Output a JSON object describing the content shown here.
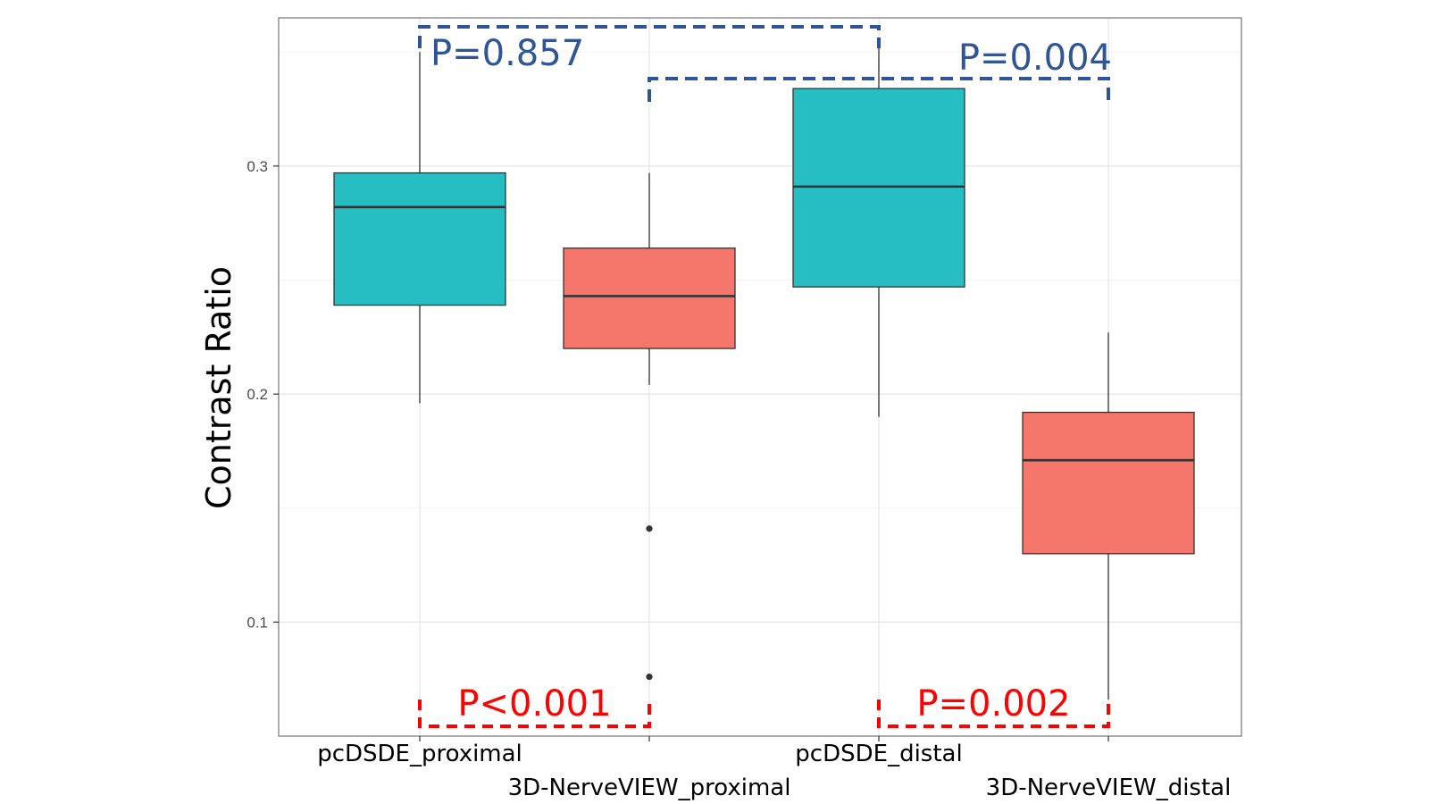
{
  "chart_data": {
    "type": "box",
    "ylabel": "Contrast Ratio",
    "xlabel": "",
    "ylim": [
      0.05,
      0.365
    ],
    "yticks": [
      0.1,
      0.2,
      0.3
    ],
    "ytick_labels": [
      "0.1",
      "0.2",
      "0.3"
    ],
    "grid": true,
    "categories": [
      "pcDSDE_proximal",
      "3D-NerveVIEW_proximal",
      "pcDSDE_distal",
      "3D-NerveVIEW_distal"
    ],
    "boxes": [
      {
        "name": "pcDSDE_proximal",
        "whisker_low": 0.196,
        "q1": 0.239,
        "median": 0.282,
        "q3": 0.297,
        "whisker_high": 0.35,
        "outliers": [],
        "color": "#26BEC2"
      },
      {
        "name": "3D-NerveVIEW_proximal",
        "whisker_low": 0.204,
        "q1": 0.22,
        "median": 0.243,
        "q3": 0.264,
        "whisker_high": 0.297,
        "outliers": [
          0.141,
          0.076
        ],
        "color": "#F5776C"
      },
      {
        "name": "pcDSDE_distal",
        "whisker_low": 0.19,
        "q1": 0.247,
        "median": 0.291,
        "q3": 0.334,
        "whisker_high": 0.356,
        "outliers": [],
        "color": "#26BEC2"
      },
      {
        "name": "3D-NerveVIEW_distal",
        "whisker_low": 0.066,
        "q1": 0.13,
        "median": 0.171,
        "q3": 0.192,
        "whisker_high": 0.227,
        "outliers": [],
        "color": "#F5776C"
      }
    ],
    "annotations": [
      {
        "text": "P=0.857",
        "from": 0,
        "to": 2,
        "bracket": "top",
        "color": "#2F5597"
      },
      {
        "text": "P=0.004",
        "from": 1,
        "to": 3,
        "bracket": "top",
        "color": "#2F5597"
      },
      {
        "text": "P<0.001",
        "from": 0,
        "to": 1,
        "bracket": "bottom",
        "color": "#FF0000"
      },
      {
        "text": "P=0.002",
        "from": 2,
        "to": 3,
        "bracket": "bottom",
        "color": "#FF0000"
      }
    ]
  }
}
